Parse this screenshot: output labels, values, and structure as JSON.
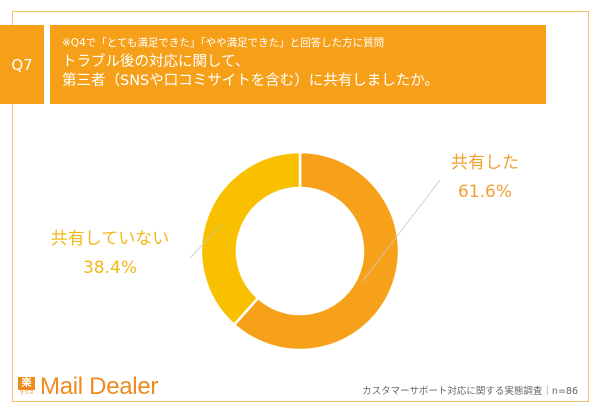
{
  "question": {
    "number": "Q7",
    "note": "※Q4で「とても満足できた」「やや満足できた」と回答した方に質問",
    "line1": "トラブル後の対応に関して、",
    "line2": "第三者（SNSや口コミサイトを含む）に共有しましたか。"
  },
  "chart_data": {
    "type": "pie",
    "variant": "donut",
    "title": "トラブル後の対応に関して、第三者（SNSや口コミサイトを含む）に共有しましたか。",
    "categories": [
      "共有した",
      "共有していない"
    ],
    "values": [
      61.6,
      38.4
    ],
    "unit": "%",
    "colors": [
      "#F7A11A",
      "#F9C000"
    ],
    "labels": [
      {
        "name": "共有した",
        "value": "61.6%"
      },
      {
        "name": "共有していない",
        "value": "38.4%"
      }
    ],
    "start_angle": "top, clockwise",
    "sample_size": "n=86"
  },
  "footer": {
    "logo_mark": "楽",
    "logo_sub": "ラクス",
    "logo_text": "Mail Dealer",
    "survey": "カスタマーサポート対応に関する実態調査｜n=86"
  },
  "colors": {
    "accent": "#F6A01A",
    "frame": "#F3C06A",
    "label_shared": "#F2A033",
    "label_not_shared": "#F2B81A"
  }
}
